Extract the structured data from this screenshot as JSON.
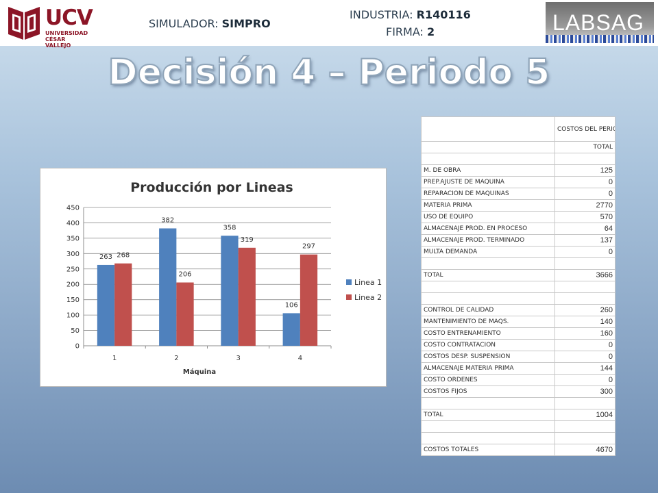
{
  "header": {
    "logo": {
      "name": "UCV",
      "line1": "UNIVERSIDAD",
      "line2": "CÉSAR VALLEJO"
    },
    "simulator_label": "SIMULADOR:",
    "simulator_value": "SIMPRO",
    "industry_label": "INDUSTRIA:",
    "industry_value": "R140116",
    "firm_label": "FIRMA:",
    "firm_value": "2",
    "brand": "LABSAG"
  },
  "title": "Decisión 4 – Periodo 5",
  "colors": {
    "series1": "#4f81bd",
    "series2": "#c0504d",
    "ucv_red": "#8c1526"
  },
  "chart_data": {
    "type": "bar",
    "title": "Producción por Lineas",
    "xlabel": "Máquina",
    "ylabel": "",
    "categories": [
      "1",
      "2",
      "3",
      "4"
    ],
    "series": [
      {
        "name": "Linea 1",
        "values": [
          263,
          382,
          358,
          106
        ]
      },
      {
        "name": "Linea 2",
        "values": [
          268,
          206,
          319,
          297
        ]
      }
    ],
    "ylim": [
      0,
      450
    ],
    "yticks": [
      0,
      50,
      100,
      150,
      200,
      250,
      300,
      350,
      400,
      450
    ],
    "grid": true,
    "legend": "right"
  },
  "costs": {
    "header": "COSTOS DEL PERIODO",
    "subheader": "TOTAL",
    "rows": [
      {
        "label": "",
        "value": ""
      },
      {
        "label": "M. DE OBRA",
        "value": "125"
      },
      {
        "label": "PREP.AJUSTE DE MAQUINA",
        "value": "0"
      },
      {
        "label": "REPARACION DE MAQUINAS",
        "value": "0"
      },
      {
        "label": "MATERIA PRIMA",
        "value": "2770"
      },
      {
        "label": "USO DE EQUIPO",
        "value": "570"
      },
      {
        "label": "ALMACENAJE PROD. EN PROCESO",
        "value": "64"
      },
      {
        "label": "ALMACENAJE PROD. TERMINADO",
        "value": "137"
      },
      {
        "label": "MULTA DEMANDA",
        "value": "0"
      },
      {
        "label": "",
        "value": ""
      },
      {
        "label": "TOTAL",
        "value": "3666"
      },
      {
        "label": "",
        "value": ""
      },
      {
        "label": "",
        "value": ""
      },
      {
        "label": "CONTROL DE CALIDAD",
        "value": "260"
      },
      {
        "label": "MANTENIMIENTO  DE MAQS.",
        "value": "140"
      },
      {
        "label": "COSTO ENTRENAMIENTO",
        "value": "160"
      },
      {
        "label": "COSTO CONTRATACION",
        "value": "0"
      },
      {
        "label": "COSTOS DESP. SUSPENSION",
        "value": "0"
      },
      {
        "label": "ALMACENAJE MATERIA PRIMA",
        "value": "144"
      },
      {
        "label": "COSTO ORDENES",
        "value": "0"
      },
      {
        "label": "COSTOS FIJOS",
        "value": "300"
      },
      {
        "label": "",
        "value": ""
      },
      {
        "label": "TOTAL",
        "value": "1004"
      },
      {
        "label": "",
        "value": ""
      },
      {
        "label": "",
        "value": ""
      },
      {
        "label": "COSTOS TOTALES",
        "value": "4670"
      }
    ]
  }
}
